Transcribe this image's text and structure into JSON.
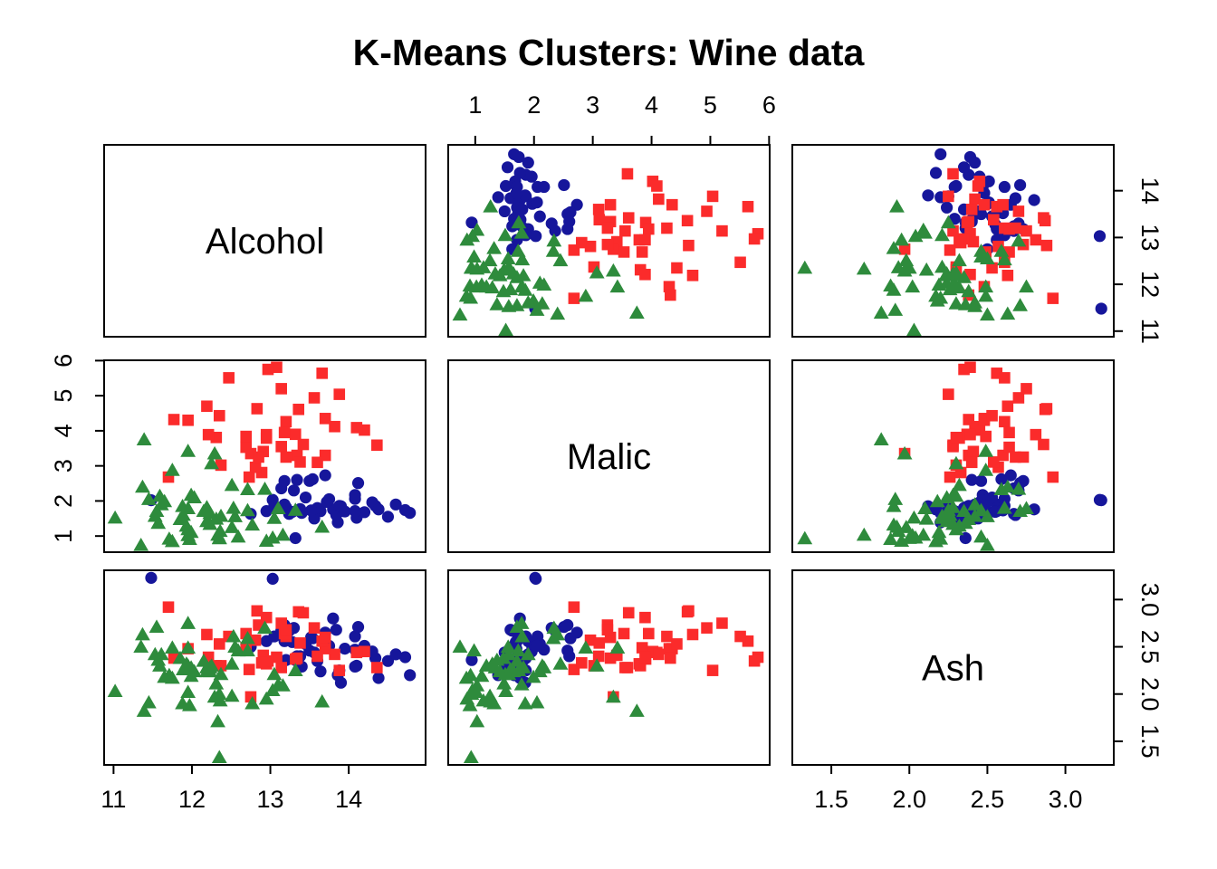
{
  "title": "K-Means Clusters: Wine data",
  "colors": {
    "background": "#FFFFFF",
    "axis": "#000000",
    "cluster_blue": "#16169B",
    "cluster_red": "#FB2B2B",
    "cluster_green": "#2E8B3C"
  },
  "chart_data": {
    "type": "scatter",
    "subtype": "pairs-matrix",
    "title": "K-Means Clusters: Wine data",
    "variables": [
      "Alcohol",
      "Malic",
      "Ash"
    ],
    "diagonal_labels": [
      "Alcohol",
      "Malic",
      "Ash"
    ],
    "grid": "off",
    "legend": "none",
    "axis_ticks": {
      "Alcohol": {
        "values": [
          11,
          12,
          13,
          14
        ],
        "labels": [
          "11",
          "12",
          "13",
          "14"
        ],
        "range": [
          10.88,
          14.98
        ]
      },
      "Malic": {
        "values": [
          1,
          2,
          3,
          4,
          5,
          6
        ],
        "labels": [
          "1",
          "2",
          "3",
          "4",
          "5",
          "6"
        ],
        "range": [
          0.54,
          6.01
        ]
      },
      "Ash": {
        "values": [
          1.5,
          2.0,
          2.5,
          3.0
        ],
        "labels": [
          "1.5",
          "2.0",
          "2.5",
          "3.0"
        ],
        "range": [
          1.25,
          3.31
        ]
      }
    },
    "clusters": [
      {
        "id": 1,
        "marker": "circle",
        "color": "#16169B"
      },
      {
        "id": 2,
        "marker": "square",
        "color": "#FB2B2B"
      },
      {
        "id": 3,
        "marker": "triangle-up",
        "color": "#2E8B3C"
      }
    ],
    "columns": [
      "Alcohol",
      "Malic",
      "Ash",
      "cluster_index"
    ],
    "points": [
      [
        14.78,
        1.66,
        2.2,
        0
      ],
      [
        14.72,
        1.74,
        2.39,
        0
      ],
      [
        14.34,
        1.86,
        2.38,
        0
      ],
      [
        14.3,
        1.96,
        2.45,
        0
      ],
      [
        14.1,
        1.52,
        2.3,
        0
      ],
      [
        14.2,
        1.68,
        2.51,
        0
      ],
      [
        14.08,
        1.71,
        2.29,
        0
      ],
      [
        13.9,
        1.85,
        2.12,
        0
      ],
      [
        14.08,
        2.06,
        2.61,
        0
      ],
      [
        14.08,
        2.17,
        2.47,
        0
      ],
      [
        14.12,
        2.51,
        2.71,
        0
      ],
      [
        13.86,
        1.39,
        2.2,
        0
      ],
      [
        13.84,
        1.6,
        2.68,
        0
      ],
      [
        13.8,
        1.76,
        2.8,
        0
      ],
      [
        13.88,
        1.86,
        2.25,
        0
      ],
      [
        13.64,
        1.71,
        2.24,
        0
      ],
      [
        13.6,
        1.8,
        2.35,
        0
      ],
      [
        13.7,
        2.73,
        2.65,
        0
      ],
      [
        13.5,
        2.57,
        2.46,
        0
      ],
      [
        13.54,
        2.62,
        2.59,
        0
      ],
      [
        13.4,
        1.66,
        2.29,
        0
      ],
      [
        13.38,
        1.77,
        2.4,
        0
      ],
      [
        13.2,
        1.82,
        2.36,
        0
      ],
      [
        13.24,
        1.63,
        2.67,
        0
      ],
      [
        13.18,
        1.9,
        2.56,
        0
      ],
      [
        13.32,
        0.94,
        2.36,
        0
      ],
      [
        13.14,
        2.36,
        2.67,
        0
      ],
      [
        13.18,
        2.57,
        2.73,
        0
      ],
      [
        13.34,
        2.6,
        2.4,
        0
      ],
      [
        12.75,
        1.63,
        2.5,
        0
      ],
      [
        12.95,
        1.71,
        2.56,
        0
      ],
      [
        13.03,
        2.03,
        3.22,
        0
      ],
      [
        11.48,
        2.02,
        3.23,
        0
      ],
      [
        14.5,
        1.55,
        2.35,
        0
      ],
      [
        14.6,
        1.9,
        2.42,
        0
      ],
      [
        13.95,
        1.7,
        2.48,
        0
      ],
      [
        13.72,
        1.97,
        2.5,
        0
      ],
      [
        13.45,
        2.1,
        2.53,
        0
      ],
      [
        13.56,
        1.5,
        2.44,
        0
      ],
      [
        13.05,
        1.86,
        2.61,
        0
      ],
      [
        13.3,
        2.3,
        2.7,
        0
      ],
      [
        14.38,
        1.76,
        2.17,
        0
      ],
      [
        13.75,
        2.05,
        2.51,
        0
      ],
      [
        13.28,
        1.69,
        2.55,
        0
      ],
      [
        13.52,
        1.73,
        2.6,
        0
      ],
      [
        14.36,
        3.59,
        2.28,
        1
      ],
      [
        14.2,
        4.02,
        2.45,
        1
      ],
      [
        14.1,
        4.09,
        2.44,
        1
      ],
      [
        13.82,
        4.12,
        2.42,
        1
      ],
      [
        13.7,
        4.35,
        2.48,
        1
      ],
      [
        13.88,
        5.04,
        2.25,
        1
      ],
      [
        13.56,
        4.94,
        2.7,
        1
      ],
      [
        13.66,
        5.64,
        2.56,
        1
      ],
      [
        13.36,
        4.61,
        2.87,
        1
      ],
      [
        13.2,
        4.26,
        2.61,
        1
      ],
      [
        13.42,
        3.61,
        2.86,
        1
      ],
      [
        13.14,
        3.55,
        2.28,
        1
      ],
      [
        13.32,
        3.9,
        2.37,
        1
      ],
      [
        13.18,
        3.95,
        2.64,
        1
      ],
      [
        13.14,
        5.2,
        2.75,
        1
      ],
      [
        13.08,
        5.81,
        2.39,
        1
      ],
      [
        13.7,
        3.3,
        2.6,
        1
      ],
      [
        13.34,
        3.3,
        2.38,
        1
      ],
      [
        12.91,
        3.41,
        2.41,
        1
      ],
      [
        12.75,
        3.35,
        1.97,
        1
      ],
      [
        12.69,
        3.53,
        2.64,
        1
      ],
      [
        12.95,
        3.79,
        2.32,
        1
      ],
      [
        12.95,
        3.89,
        2.81,
        1
      ],
      [
        12.69,
        3.84,
        2.49,
        1
      ],
      [
        12.31,
        3.81,
        2.3,
        1
      ],
      [
        12.21,
        3.89,
        2.39,
        1
      ],
      [
        11.95,
        4.3,
        2.48,
        1
      ],
      [
        11.77,
        4.32,
        2.38,
        1
      ],
      [
        12.35,
        4.43,
        2.53,
        1
      ],
      [
        12.83,
        4.63,
        2.88,
        1
      ],
      [
        12.19,
        4.7,
        2.63,
        1
      ],
      [
        12.47,
        5.51,
        2.61,
        1
      ],
      [
        12.97,
        5.75,
        2.35,
        1
      ],
      [
        12.73,
        2.68,
        2.26,
        1
      ],
      [
        12.89,
        2.81,
        2.33,
        1
      ],
      [
        12.81,
        2.96,
        2.57,
        1
      ],
      [
        12.85,
        3.25,
        2.73,
        1
      ],
      [
        12.37,
        3.02,
        2.3,
        1
      ],
      [
        11.7,
        2.68,
        2.92,
        1
      ],
      [
        13.6,
        3.1,
        2.4,
        1
      ],
      [
        13.38,
        3.11,
        2.54,
        1
      ],
      [
        13.2,
        3.25,
        2.68,
        1
      ],
      [
        13.66,
        1.26,
        1.92,
        2
      ],
      [
        13.16,
        1.03,
        2.09,
        2
      ],
      [
        13.03,
        0.95,
        2.04,
        2
      ],
      [
        13.05,
        1.51,
        2.21,
        2
      ],
      [
        13.32,
        1.74,
        2.25,
        2
      ],
      [
        13.1,
        1.79,
        2.1,
        2
      ],
      [
        12.95,
        0.86,
        1.95,
        2
      ],
      [
        12.77,
        1.32,
        1.9,
        2
      ],
      [
        12.59,
        0.98,
        2.46,
        2
      ],
      [
        12.51,
        1.25,
        1.98,
        2
      ],
      [
        12.55,
        1.56,
        2.5,
        2
      ],
      [
        12.71,
        1.73,
        2.46,
        2
      ],
      [
        12.53,
        1.8,
        2.61,
        2
      ],
      [
        12.93,
        2.34,
        2.7,
        2
      ],
      [
        12.71,
        2.33,
        2.59,
        2
      ],
      [
        12.51,
        2.45,
        2.32,
        2
      ],
      [
        12.35,
        0.94,
        2.0,
        2
      ],
      [
        12.33,
        1.03,
        1.71,
        2
      ],
      [
        12.36,
        1.14,
        1.93,
        2
      ],
      [
        12.35,
        0.93,
        1.33,
        2
      ],
      [
        12.23,
        1.34,
        2.28,
        2
      ],
      [
        12.19,
        1.42,
        2.24,
        2
      ],
      [
        12.31,
        1.49,
        2.11,
        2
      ],
      [
        12.37,
        1.57,
        2.21,
        2
      ],
      [
        12.23,
        1.65,
        2.24,
        2
      ],
      [
        12.15,
        1.71,
        2.35,
        2
      ],
      [
        12.19,
        1.82,
        2.28,
        2
      ],
      [
        11.97,
        0.91,
        1.88,
        2
      ],
      [
        11.95,
        1.02,
        2.02,
        2
      ],
      [
        11.99,
        1.11,
        2.19,
        2
      ],
      [
        11.95,
        1.19,
        2.3,
        2
      ],
      [
        11.93,
        1.29,
        2.32,
        2
      ],
      [
        11.85,
        1.48,
        2.38,
        2
      ],
      [
        11.89,
        1.6,
        2.26,
        2
      ],
      [
        11.95,
        1.79,
        2.75,
        2
      ],
      [
        12.03,
        2.1,
        2.24,
        2
      ],
      [
        11.99,
        2.17,
        2.28,
        2
      ],
      [
        11.75,
        0.85,
        2.17,
        2
      ],
      [
        11.71,
        0.92,
        2.2,
        2
      ],
      [
        11.57,
        1.37,
        2.36,
        2
      ],
      [
        11.53,
        1.57,
        2.42,
        2
      ],
      [
        11.55,
        1.71,
        2.71,
        2
      ],
      [
        11.61,
        1.9,
        2.42,
        2
      ],
      [
        11.65,
        1.99,
        2.18,
        2
      ],
      [
        11.59,
        2.14,
        2.3,
        2
      ],
      [
        11.37,
        2.4,
        2.63,
        2
      ],
      [
        11.35,
        0.74,
        2.5,
        2
      ],
      [
        11.02,
        1.52,
        2.03,
        2
      ],
      [
        11.75,
        2.88,
        2.49,
        2
      ],
      [
        12.25,
        3.07,
        2.3,
        2
      ],
      [
        12.29,
        3.35,
        1.97,
        2
      ],
      [
        11.95,
        3.42,
        2.49,
        2
      ],
      [
        11.39,
        3.75,
        1.82,
        2
      ],
      [
        11.45,
        2.05,
        1.91,
        2
      ],
      [
        11.88,
        1.85,
        1.9,
        2
      ]
    ]
  }
}
